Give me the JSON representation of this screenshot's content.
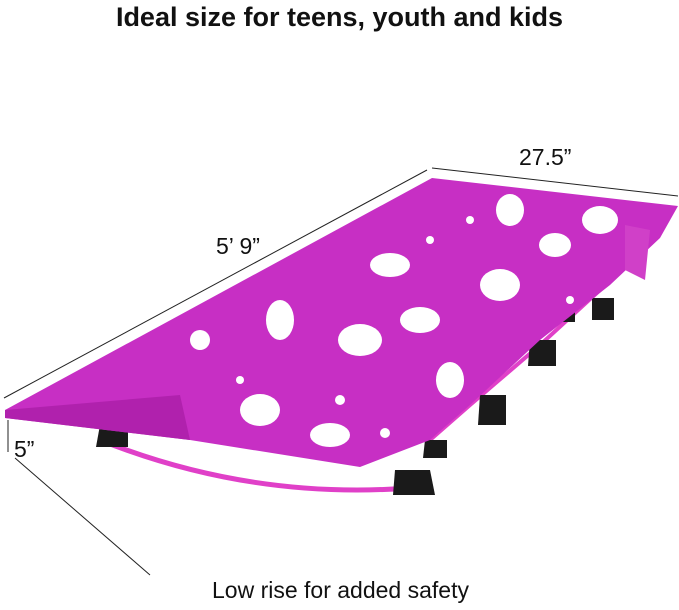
{
  "headline": "Ideal size for teens, youth and kids",
  "dimensions": {
    "length": "5’ 9”",
    "width": "27.5”",
    "height": "5”"
  },
  "caption": "Low rise for added safety",
  "colors": {
    "fabric": "#c72fc4",
    "fabric_shade": "#b021ad",
    "frame": "#e040c8",
    "legs": "#1a1a1a",
    "print": "#ffffff"
  }
}
